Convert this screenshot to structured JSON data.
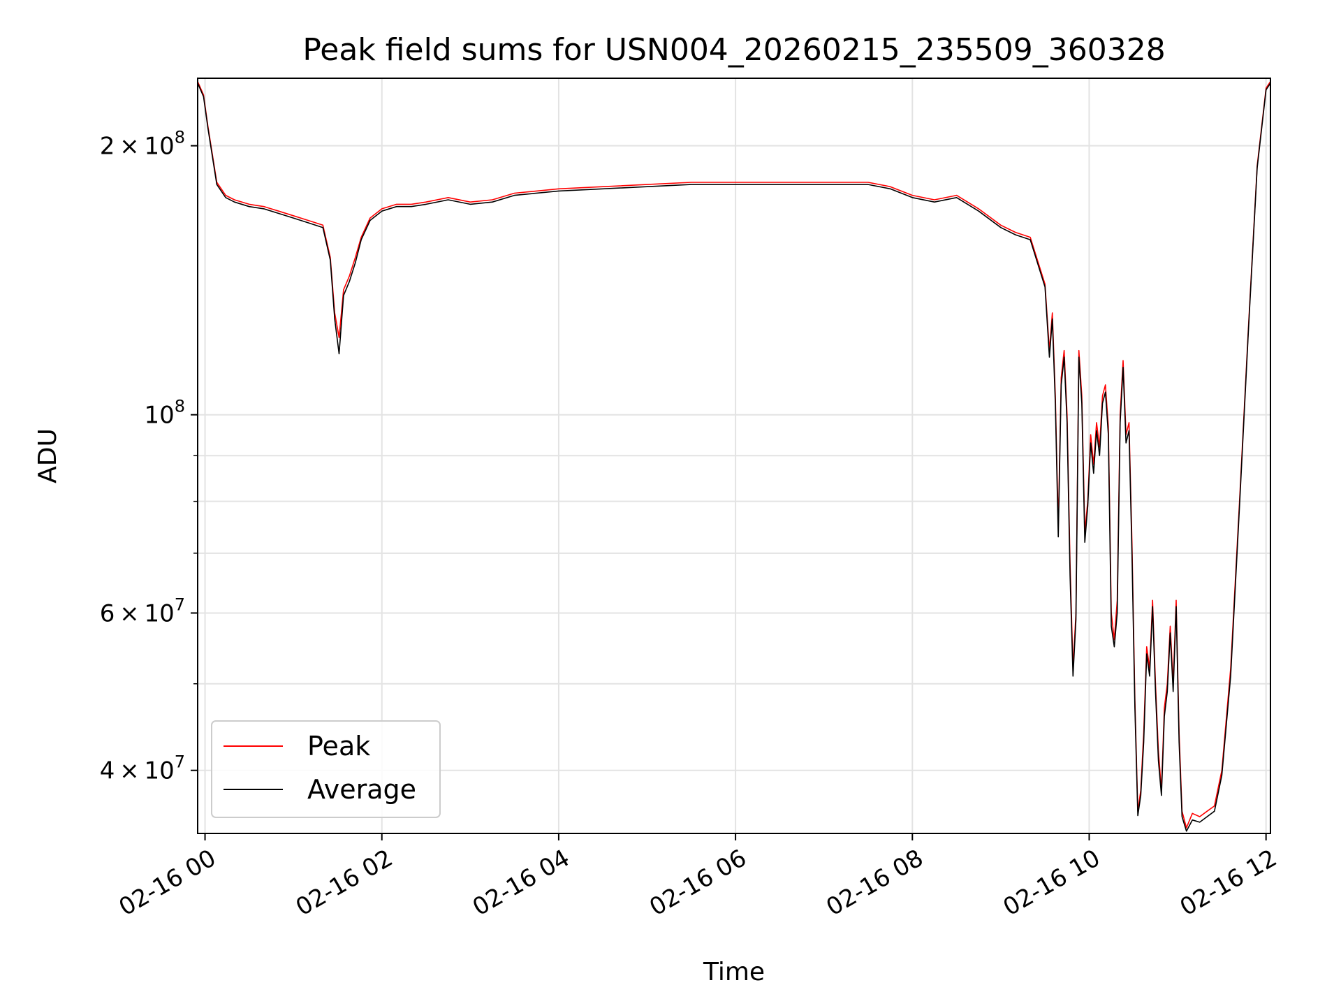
{
  "chart_data": {
    "type": "line",
    "title": "Peak field sums for USN004_20260215_235509_360328",
    "xlabel": "Time",
    "ylabel": "ADU",
    "y_scale": "log",
    "x_unit": "hours after 02-16 00:00",
    "xlim": [
      "02-15 23:55",
      "02-16 12:03"
    ],
    "ylim": [
      34000000,
      238000000
    ],
    "grid": true,
    "legend": {
      "position": "lower-left",
      "entries": [
        "Peak",
        "Average"
      ]
    },
    "x_ticks": [
      "02-16 00",
      "02-16 02",
      "02-16 04",
      "02-16 06",
      "02-16 08",
      "02-16 10",
      "02-16 12"
    ],
    "y_ticks": [
      {
        "mantissa": "2",
        "exponent": "8",
        "value": 200000000
      },
      {
        "mantissa": "",
        "exponent": "8",
        "value": 100000000
      },
      {
        "mantissa": "6",
        "exponent": "7",
        "value": 60000000
      },
      {
        "mantissa": "4",
        "exponent": "7",
        "value": 40000000
      }
    ],
    "series": [
      {
        "name": "Peak",
        "color": "#ff0000",
        "points": [
          [
            "02-15 23:55",
            236000000
          ],
          [
            "02-15 23:59",
            228000000
          ],
          [
            "02-16 00:02",
            210000000
          ],
          [
            "02-16 00:08",
            182000000
          ],
          [
            "02-16 00:14",
            176000000
          ],
          [
            "02-16 00:20",
            174000000
          ],
          [
            "02-16 00:30",
            172000000
          ],
          [
            "02-16 00:40",
            171000000
          ],
          [
            "02-16 00:50",
            169000000
          ],
          [
            "02-16 01:00",
            167000000
          ],
          [
            "02-16 01:10",
            165000000
          ],
          [
            "02-16 01:20",
            163000000
          ],
          [
            "02-16 01:25",
            150000000
          ],
          [
            "02-16 01:28",
            130000000
          ],
          [
            "02-16 01:31",
            122000000
          ],
          [
            "02-16 01:34",
            138000000
          ],
          [
            "02-16 01:38",
            143000000
          ],
          [
            "02-16 01:42",
            150000000
          ],
          [
            "02-16 01:46",
            158000000
          ],
          [
            "02-16 01:52",
            166000000
          ],
          [
            "02-16 02:00",
            170000000
          ],
          [
            "02-16 02:10",
            172000000
          ],
          [
            "02-16 02:20",
            172000000
          ],
          [
            "02-16 02:30",
            173000000
          ],
          [
            "02-16 02:45",
            175000000
          ],
          [
            "02-16 03:00",
            173000000
          ],
          [
            "02-16 03:15",
            174000000
          ],
          [
            "02-16 03:30",
            177000000
          ],
          [
            "02-16 04:00",
            179000000
          ],
          [
            "02-16 04:30",
            180000000
          ],
          [
            "02-16 05:00",
            181000000
          ],
          [
            "02-16 05:30",
            182000000
          ],
          [
            "02-16 06:00",
            182000000
          ],
          [
            "02-16 06:30",
            182000000
          ],
          [
            "02-16 07:00",
            182000000
          ],
          [
            "02-16 07:30",
            182000000
          ],
          [
            "02-16 07:45",
            180000000
          ],
          [
            "02-16 08:00",
            176000000
          ],
          [
            "02-16 08:15",
            174000000
          ],
          [
            "02-16 08:30",
            176000000
          ],
          [
            "02-16 08:45",
            170000000
          ],
          [
            "02-16 09:00",
            163000000
          ],
          [
            "02-16 09:10",
            160000000
          ],
          [
            "02-16 09:20",
            158000000
          ],
          [
            "02-16 09:30",
            140000000
          ],
          [
            "02-16 09:33",
            118000000
          ],
          [
            "02-16 09:35",
            130000000
          ],
          [
            "02-16 09:37",
            105000000
          ],
          [
            "02-16 09:39",
            75000000
          ],
          [
            "02-16 09:41",
            110000000
          ],
          [
            "02-16 09:43",
            118000000
          ],
          [
            "02-16 09:45",
            100000000
          ],
          [
            "02-16 09:47",
            68000000
          ],
          [
            "02-16 09:49",
            52000000
          ],
          [
            "02-16 09:51",
            60000000
          ],
          [
            "02-16 09:53",
            118000000
          ],
          [
            "02-16 09:55",
            105000000
          ],
          [
            "02-16 09:57",
            74000000
          ],
          [
            "02-16 09:59",
            80000000
          ],
          [
            "02-16 10:01",
            95000000
          ],
          [
            "02-16 10:03",
            88000000
          ],
          [
            "02-16 10:05",
            98000000
          ],
          [
            "02-16 10:07",
            92000000
          ],
          [
            "02-16 10:09",
            105000000
          ],
          [
            "02-16 10:11",
            108000000
          ],
          [
            "02-16 10:13",
            97000000
          ],
          [
            "02-16 10:15",
            60000000
          ],
          [
            "02-16 10:17",
            56000000
          ],
          [
            "02-16 10:19",
            62000000
          ],
          [
            "02-16 10:21",
            100000000
          ],
          [
            "02-16 10:23",
            115000000
          ],
          [
            "02-16 10:25",
            95000000
          ],
          [
            "02-16 10:27",
            98000000
          ],
          [
            "02-16 10:29",
            72000000
          ],
          [
            "02-16 10:31",
            48000000
          ],
          [
            "02-16 10:33",
            36000000
          ],
          [
            "02-16 10:35",
            38000000
          ],
          [
            "02-16 10:37",
            44000000
          ],
          [
            "02-16 10:39",
            55000000
          ],
          [
            "02-16 10:41",
            52000000
          ],
          [
            "02-16 10:43",
            62000000
          ],
          [
            "02-16 10:45",
            50000000
          ],
          [
            "02-16 10:47",
            42000000
          ],
          [
            "02-16 10:49",
            38000000
          ],
          [
            "02-16 10:51",
            47000000
          ],
          [
            "02-16 10:53",
            50000000
          ],
          [
            "02-16 10:55",
            58000000
          ],
          [
            "02-16 10:57",
            50000000
          ],
          [
            "02-16 10:59",
            62000000
          ],
          [
            "02-16 11:01",
            44000000
          ],
          [
            "02-16 11:03",
            36000000
          ],
          [
            "02-16 11:06",
            34500000
          ],
          [
            "02-16 11:10",
            35800000
          ],
          [
            "02-16 11:15",
            35500000
          ],
          [
            "02-16 11:20",
            36000000
          ],
          [
            "02-16 11:25",
            36500000
          ],
          [
            "02-16 11:30",
            40000000
          ],
          [
            "02-16 11:36",
            52000000
          ],
          [
            "02-16 11:42",
            80000000
          ],
          [
            "02-16 11:48",
            125000000
          ],
          [
            "02-16 11:54",
            190000000
          ],
          [
            "02-16 12:00",
            232000000
          ],
          [
            "02-16 12:03",
            236000000
          ]
        ]
      },
      {
        "name": "Average",
        "color": "#000000",
        "points": [
          [
            "02-15 23:55",
            235000000
          ],
          [
            "02-15 23:59",
            227000000
          ],
          [
            "02-16 00:02",
            209000000
          ],
          [
            "02-16 00:08",
            181000000
          ],
          [
            "02-16 00:14",
            175000000
          ],
          [
            "02-16 00:20",
            173000000
          ],
          [
            "02-16 00:30",
            171000000
          ],
          [
            "02-16 00:40",
            170000000
          ],
          [
            "02-16 00:50",
            168000000
          ],
          [
            "02-16 01:00",
            166000000
          ],
          [
            "02-16 01:10",
            164000000
          ],
          [
            "02-16 01:20",
            162000000
          ],
          [
            "02-16 01:25",
            149000000
          ],
          [
            "02-16 01:28",
            128000000
          ],
          [
            "02-16 01:31",
            117000000
          ],
          [
            "02-16 01:34",
            136000000
          ],
          [
            "02-16 01:38",
            141000000
          ],
          [
            "02-16 01:42",
            148000000
          ],
          [
            "02-16 01:46",
            157000000
          ],
          [
            "02-16 01:52",
            165000000
          ],
          [
            "02-16 02:00",
            169000000
          ],
          [
            "02-16 02:10",
            171000000
          ],
          [
            "02-16 02:20",
            171000000
          ],
          [
            "02-16 02:30",
            172000000
          ],
          [
            "02-16 02:45",
            174000000
          ],
          [
            "02-16 03:00",
            172000000
          ],
          [
            "02-16 03:15",
            173000000
          ],
          [
            "02-16 03:30",
            176000000
          ],
          [
            "02-16 04:00",
            178000000
          ],
          [
            "02-16 04:30",
            179000000
          ],
          [
            "02-16 05:00",
            180000000
          ],
          [
            "02-16 05:30",
            181000000
          ],
          [
            "02-16 06:00",
            181000000
          ],
          [
            "02-16 06:30",
            181000000
          ],
          [
            "02-16 07:00",
            181000000
          ],
          [
            "02-16 07:30",
            181000000
          ],
          [
            "02-16 07:45",
            179000000
          ],
          [
            "02-16 08:00",
            175000000
          ],
          [
            "02-16 08:15",
            173000000
          ],
          [
            "02-16 08:30",
            175000000
          ],
          [
            "02-16 08:45",
            169000000
          ],
          [
            "02-16 09:00",
            162000000
          ],
          [
            "02-16 09:10",
            159000000
          ],
          [
            "02-16 09:20",
            157000000
          ],
          [
            "02-16 09:30",
            139000000
          ],
          [
            "02-16 09:33",
            116000000
          ],
          [
            "02-16 09:35",
            128000000
          ],
          [
            "02-16 09:37",
            103000000
          ],
          [
            "02-16 09:39",
            73000000
          ],
          [
            "02-16 09:41",
            108000000
          ],
          [
            "02-16 09:43",
            116000000
          ],
          [
            "02-16 09:45",
            98000000
          ],
          [
            "02-16 09:47",
            66000000
          ],
          [
            "02-16 09:49",
            51000000
          ],
          [
            "02-16 09:51",
            59000000
          ],
          [
            "02-16 09:53",
            116000000
          ],
          [
            "02-16 09:55",
            103000000
          ],
          [
            "02-16 09:57",
            72000000
          ],
          [
            "02-16 09:59",
            79000000
          ],
          [
            "02-16 10:01",
            93000000
          ],
          [
            "02-16 10:03",
            86000000
          ],
          [
            "02-16 10:05",
            96000000
          ],
          [
            "02-16 10:07",
            90000000
          ],
          [
            "02-16 10:09",
            103000000
          ],
          [
            "02-16 10:11",
            106000000
          ],
          [
            "02-16 10:13",
            95000000
          ],
          [
            "02-16 10:15",
            58000000
          ],
          [
            "02-16 10:17",
            55000000
          ],
          [
            "02-16 10:19",
            60000000
          ],
          [
            "02-16 10:21",
            98000000
          ],
          [
            "02-16 10:23",
            113000000
          ],
          [
            "02-16 10:25",
            93000000
          ],
          [
            "02-16 10:27",
            96000000
          ],
          [
            "02-16 10:29",
            70000000
          ],
          [
            "02-16 10:31",
            47000000
          ],
          [
            "02-16 10:33",
            35600000
          ],
          [
            "02-16 10:35",
            37500000
          ],
          [
            "02-16 10:37",
            43000000
          ],
          [
            "02-16 10:39",
            54000000
          ],
          [
            "02-16 10:41",
            51000000
          ],
          [
            "02-16 10:43",
            61000000
          ],
          [
            "02-16 10:45",
            49000000
          ],
          [
            "02-16 10:47",
            41000000
          ],
          [
            "02-16 10:49",
            37500000
          ],
          [
            "02-16 10:51",
            46000000
          ],
          [
            "02-16 10:53",
            49000000
          ],
          [
            "02-16 10:55",
            57000000
          ],
          [
            "02-16 10:57",
            49000000
          ],
          [
            "02-16 10:59",
            61000000
          ],
          [
            "02-16 11:01",
            43000000
          ],
          [
            "02-16 11:03",
            35500000
          ],
          [
            "02-16 11:06",
            34200000
          ],
          [
            "02-16 11:10",
            35200000
          ],
          [
            "02-16 11:15",
            35000000
          ],
          [
            "02-16 11:20",
            35500000
          ],
          [
            "02-16 11:25",
            36000000
          ],
          [
            "02-16 11:30",
            39500000
          ],
          [
            "02-16 11:36",
            51000000
          ],
          [
            "02-16 11:42",
            79000000
          ],
          [
            "02-16 11:48",
            124000000
          ],
          [
            "02-16 11:54",
            189000000
          ],
          [
            "02-16 12:00",
            231000000
          ],
          [
            "02-16 12:03",
            235000000
          ]
        ]
      }
    ]
  }
}
